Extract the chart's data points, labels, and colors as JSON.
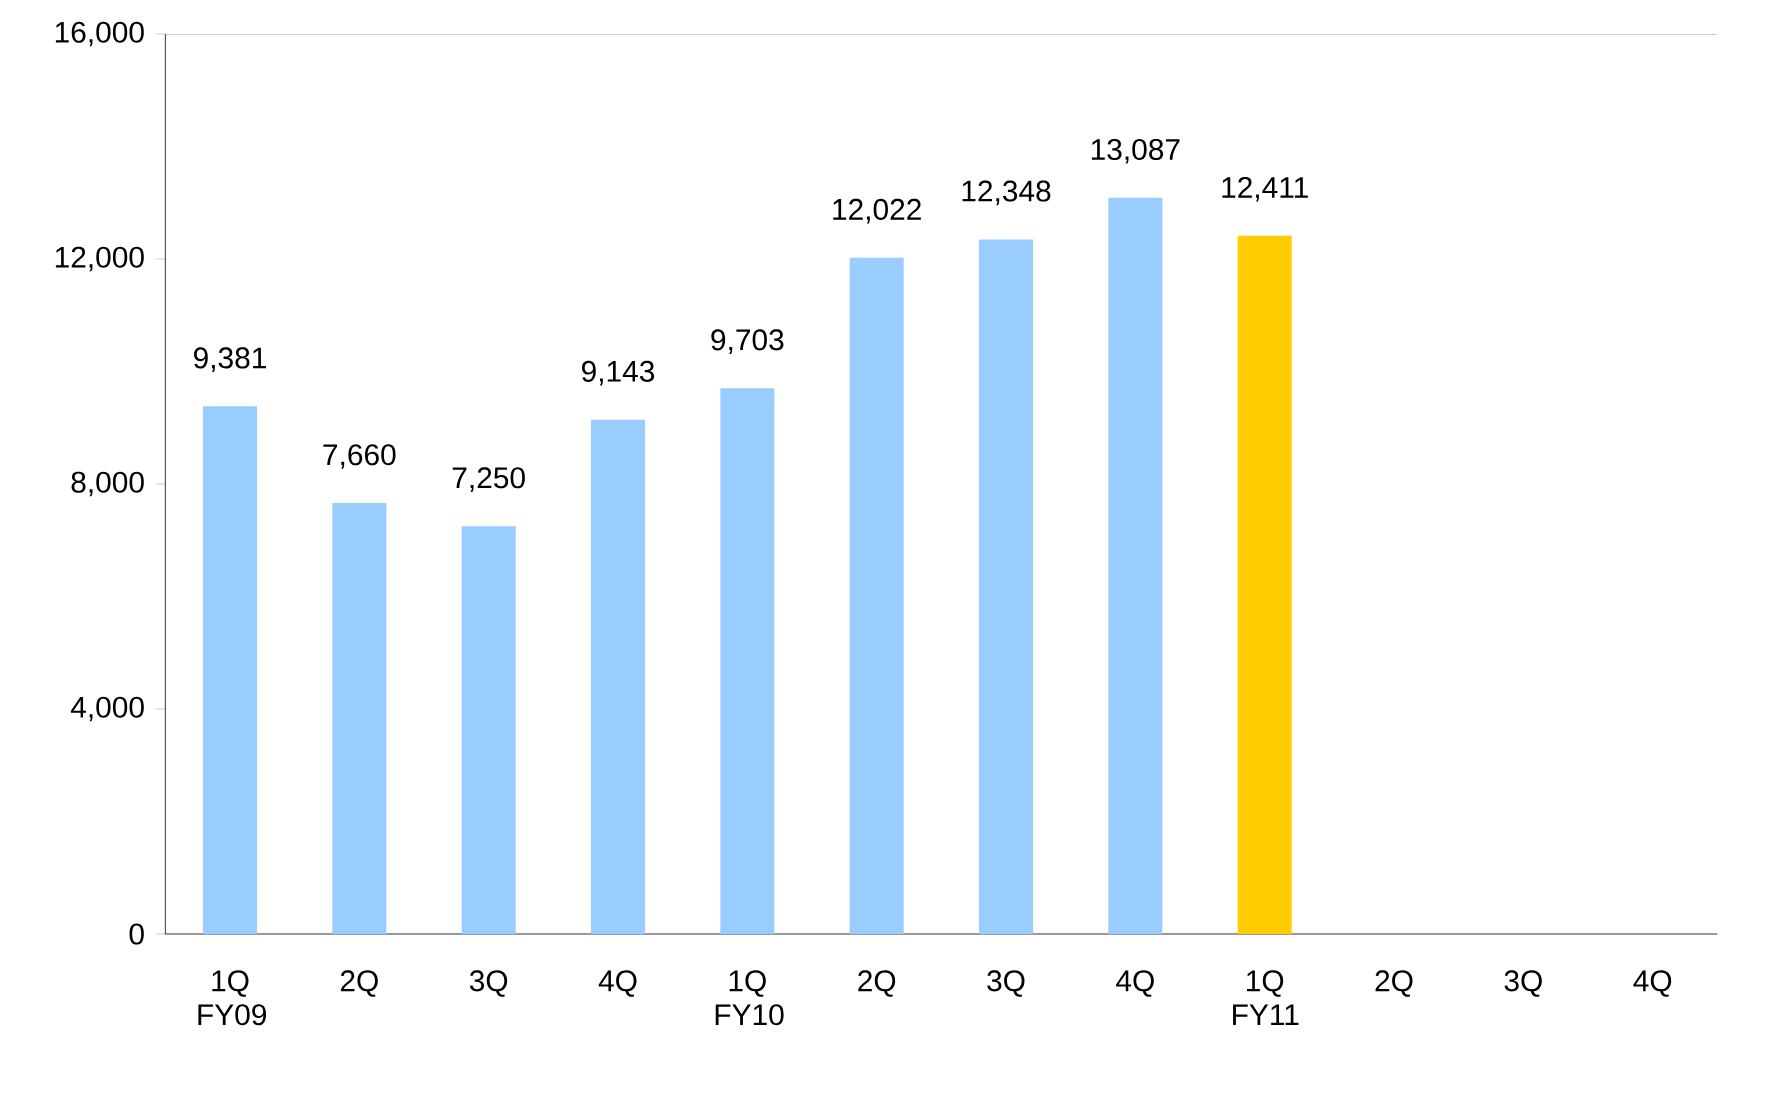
{
  "chart_data": {
    "type": "bar",
    "categories": [
      "1Q FY09",
      "2Q",
      "3Q",
      "4Q",
      "1Q FY10",
      "2Q",
      "3Q",
      "4Q",
      "1Q FY11",
      "2Q",
      "3Q",
      "4Q"
    ],
    "values": [
      9381,
      7660,
      7250,
      9143,
      9703,
      12022,
      12348,
      13087,
      12411,
      null,
      null,
      null
    ],
    "colors": [
      "#99ccff",
      "#99ccff",
      "#99ccff",
      "#99ccff",
      "#99ccff",
      "#99ccff",
      "#99ccff",
      "#99ccff",
      "#ffcc00",
      "#99ccff",
      "#99ccff",
      "#99ccff"
    ],
    "ylim": [
      0,
      16000
    ],
    "yticks": [
      {
        "value": 0,
        "label": "0"
      },
      {
        "value": 4000,
        "label": "4,000"
      },
      {
        "value": 8000,
        "label": "8,000"
      },
      {
        "value": 12000,
        "label": "12,000"
      },
      {
        "value": 16000,
        "label": "16,000"
      }
    ],
    "value_labels": [
      "9,381",
      "7,660",
      "7,250",
      "9,143",
      "9,703",
      "12,022",
      "12,348",
      "13,087",
      "12,411",
      null,
      null,
      null
    ],
    "grid": false
  }
}
